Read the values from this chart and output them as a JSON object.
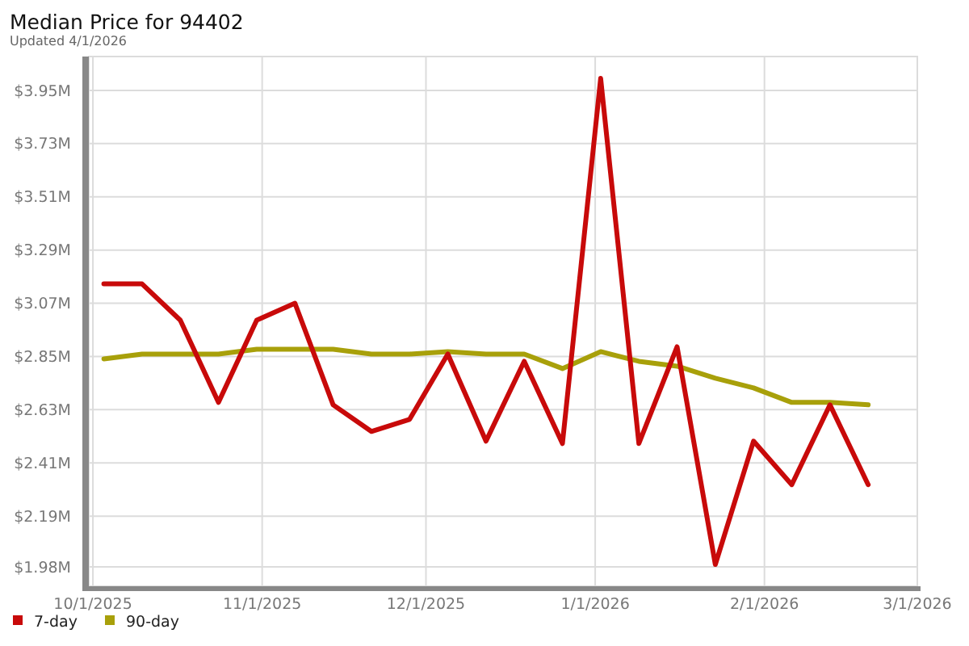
{
  "chart_data": {
    "type": "line",
    "title": "Median Price for 94402",
    "subtitle": "Updated 4/1/2026",
    "x": [
      "2025-10-03",
      "2025-10-10",
      "2025-10-17",
      "2025-10-24",
      "2025-10-31",
      "2025-11-07",
      "2025-11-14",
      "2025-11-21",
      "2025-11-28",
      "2025-12-05",
      "2025-12-12",
      "2025-12-19",
      "2025-12-26",
      "2026-01-02",
      "2026-01-09",
      "2026-01-16",
      "2026-01-23",
      "2026-01-30",
      "2026-02-06",
      "2026-02-13",
      "2026-02-20"
    ],
    "series": [
      {
        "name": "7-day",
        "color": "#c80a0a",
        "values": [
          3.15,
          3.15,
          3.0,
          2.66,
          3.0,
          3.07,
          2.65,
          2.54,
          2.59,
          2.86,
          2.5,
          2.83,
          2.49,
          4.0,
          2.49,
          2.89,
          1.99,
          2.5,
          2.32,
          2.65,
          2.32
        ]
      },
      {
        "name": "90-day",
        "color": "#a8a00a",
        "values": [
          2.84,
          2.86,
          2.86,
          2.86,
          2.88,
          2.88,
          2.88,
          2.86,
          2.86,
          2.87,
          2.86,
          2.86,
          2.8,
          2.87,
          2.83,
          2.81,
          2.76,
          2.72,
          2.66,
          2.66,
          2.65
        ]
      }
    ],
    "xlim": [
      "2025-09-30T06:00",
      "2026-03-01"
    ],
    "xticks": [
      {
        "value": "2025-10-01",
        "label": "10/1/2025"
      },
      {
        "value": "2025-11-01",
        "label": "11/1/2025"
      },
      {
        "value": "2025-12-01",
        "label": "12/1/2025"
      },
      {
        "value": "2026-01-01",
        "label": "1/1/2026"
      },
      {
        "value": "2026-02-01",
        "label": "2/1/2026"
      },
      {
        "value": "2026-03-01",
        "label": "3/1/2026"
      }
    ],
    "ylim": [
      1.9,
      4.09
    ],
    "yticks": [
      {
        "value": 1.98,
        "label": "$1.98M"
      },
      {
        "value": 2.19,
        "label": "$2.19M"
      },
      {
        "value": 2.41,
        "label": "$2.41M"
      },
      {
        "value": 2.63,
        "label": "$2.63M"
      },
      {
        "value": 2.85,
        "label": "$2.85M"
      },
      {
        "value": 3.07,
        "label": "$3.07M"
      },
      {
        "value": 3.29,
        "label": "$3.29M"
      },
      {
        "value": 3.51,
        "label": "$3.51M"
      },
      {
        "value": 3.73,
        "label": "$3.73M"
      },
      {
        "value": 3.95,
        "label": "$3.95M"
      }
    ],
    "grid": true,
    "legend": "bottom left",
    "line_style": "solid"
  }
}
